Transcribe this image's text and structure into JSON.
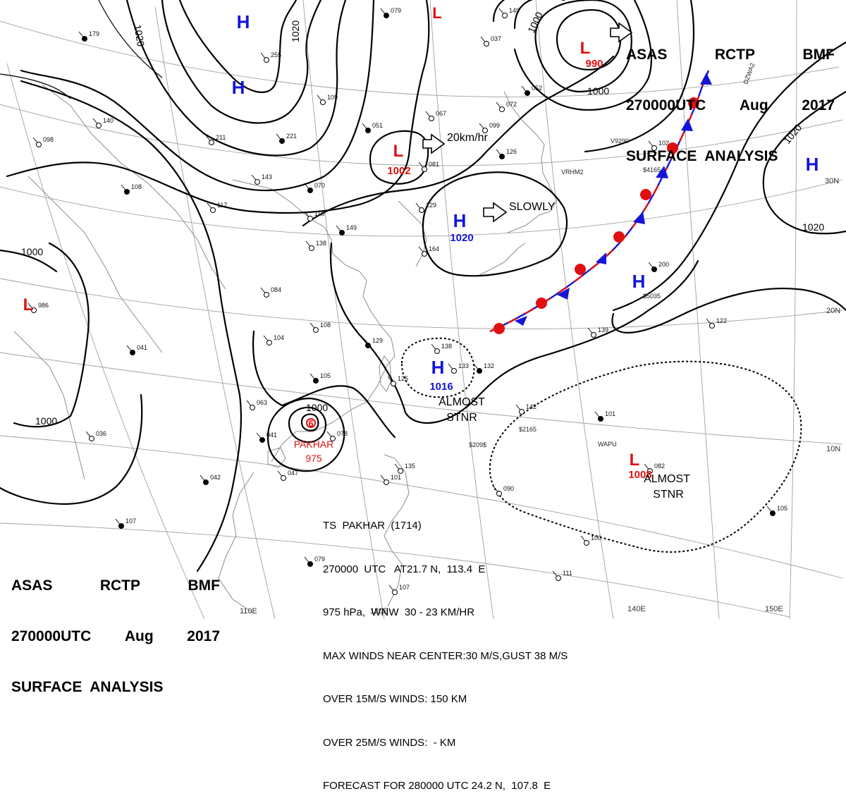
{
  "header": {
    "line1": [
      "ASAS",
      "RCTP",
      "BMF"
    ],
    "line2": [
      "270000UTC",
      "Aug",
      "2017"
    ],
    "line3": "SURFACE  ANALYSIS"
  },
  "pressure_systems": [
    {
      "type": "H",
      "label": "H",
      "pressure": "",
      "color": "#1515d8"
    },
    {
      "type": "H",
      "label": "H",
      "pressure": "",
      "color": "#1515d8"
    },
    {
      "type": "L",
      "label": "L",
      "pressure": "990",
      "color": "#e01010"
    },
    {
      "type": "L",
      "label": "L",
      "pressure": "1002",
      "color": "#e01010"
    },
    {
      "type": "H",
      "label": "H",
      "pressure": "1020",
      "color": "#1515d8"
    },
    {
      "type": "H",
      "label": "H",
      "pressure": "",
      "color": "#1515d8"
    },
    {
      "type": "H",
      "label": "H",
      "pressure": "",
      "color": "#1515d8"
    },
    {
      "type": "L",
      "label": "L",
      "pressure": "",
      "color": "#e01010"
    },
    {
      "type": "H",
      "label": "H",
      "pressure": "1016",
      "color": "#1515d8"
    },
    {
      "type": "L",
      "label": "L",
      "pressure": "1008",
      "color": "#e01010"
    },
    {
      "type": "L",
      "label": "L",
      "pressure": "",
      "color": "#e01010"
    }
  ],
  "typhoon": {
    "name": "PAKHAR",
    "pressure": "975",
    "symbol": "6"
  },
  "movement_labels": {
    "low_1002": "20km/hr",
    "high_1020": "SLOWLY"
  },
  "stationary_labels": [
    {
      "line1": "ALMOST",
      "line2": "STNR"
    },
    {
      "line1": "ALMOST",
      "line2": "STNR"
    }
  ],
  "isobar_labels": [
    "1020",
    "1020",
    "1000",
    "1000",
    "1020",
    "1020",
    "1000",
    "1000",
    "1000"
  ],
  "lat_labels": [
    "30N",
    "20N",
    "10N"
  ],
  "lon_labels": [
    "110E",
    "120E",
    "140E",
    "150E"
  ],
  "ts_advisory": [
    "TS  PAKHAR  (1714)",
    "270000  UTC   AT21.7 N,  113.4  E",
    "975 hPa,  WNW  30 - 23 KM/HR",
    "MAX WINDS NEAR CENTER:30 M/S,GUST 38 M/S",
    "OVER 15M/S WINDS: 150 KM",
    "OVER 25M/S WINDS:  - KM",
    "FORECAST FOR 280000 UTC 24.2 N,  107.8  E"
  ],
  "stations": [
    {
      "label": "079"
    },
    {
      "label": "149"
    },
    {
      "label": "037"
    },
    {
      "label": "052"
    },
    {
      "label": "072"
    },
    {
      "label": "067"
    },
    {
      "label": "051"
    },
    {
      "label": "099"
    },
    {
      "label": "109"
    },
    {
      "label": "221"
    },
    {
      "label": "211"
    },
    {
      "label": "255"
    },
    {
      "label": "179"
    },
    {
      "label": "140"
    },
    {
      "label": "098"
    },
    {
      "label": "108"
    },
    {
      "label": "117"
    },
    {
      "label": "143"
    },
    {
      "label": "070"
    },
    {
      "label": "118"
    },
    {
      "label": "081"
    },
    {
      "label": "126"
    },
    {
      "label": "102"
    },
    {
      "label": "129"
    },
    {
      "label": "149"
    },
    {
      "label": "138"
    },
    {
      "label": "164"
    },
    {
      "label": "200"
    },
    {
      "label": "084"
    },
    {
      "label": "986"
    },
    {
      "label": "041"
    },
    {
      "label": "104"
    },
    {
      "label": "108"
    },
    {
      "label": "129"
    },
    {
      "label": "138"
    },
    {
      "label": "133"
    },
    {
      "label": "132"
    },
    {
      "label": "122"
    },
    {
      "label": "139"
    },
    {
      "label": "105"
    },
    {
      "label": "125"
    },
    {
      "label": "063"
    },
    {
      "label": "041"
    },
    {
      "label": "078"
    },
    {
      "label": "036"
    },
    {
      "label": "042"
    },
    {
      "label": "047"
    },
    {
      "label": "142"
    },
    {
      "label": "101"
    },
    {
      "label": "090"
    },
    {
      "label": "082"
    },
    {
      "label": "105"
    },
    {
      "label": "100"
    },
    {
      "label": "111"
    },
    {
      "label": "107"
    },
    {
      "label": "135"
    },
    {
      "label": "101"
    },
    {
      "label": "079"
    },
    {
      "label": "107"
    }
  ],
  "station_ids": [
    "VRHM2",
    "V9290",
    "$4165",
    "DZWA2",
    "WAPU",
    "$5035",
    "$2165",
    "$209$"
  ],
  "colors": {
    "high": "#1515d8",
    "low": "#e01010",
    "front_warm": "#e01010",
    "front_cold": "#1515d8",
    "isobar": "#000000",
    "grid": "#9a9a9a",
    "coast": "#8a8a8a"
  }
}
